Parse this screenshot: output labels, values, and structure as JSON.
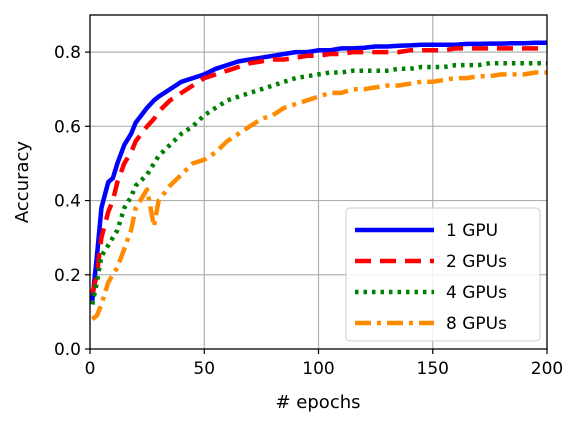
{
  "chart_data": {
    "type": "line",
    "title": "",
    "xlabel": "# epochs",
    "ylabel": "Accuracy",
    "xlim": [
      0,
      200
    ],
    "ylim": [
      0,
      0.9
    ],
    "xticks": [
      0,
      50,
      100,
      150,
      200
    ],
    "yticks": [
      0.0,
      0.2,
      0.4,
      0.6,
      0.8
    ],
    "xtick_labels": [
      "0",
      "50",
      "100",
      "150",
      "200"
    ],
    "ytick_labels": [
      "0.0",
      "0.2",
      "0.4",
      "0.6",
      "0.8"
    ],
    "grid": true,
    "legend_position": "lower-right",
    "x": [
      1,
      3,
      5,
      8,
      10,
      12,
      15,
      18,
      20,
      25,
      28,
      30,
      35,
      40,
      45,
      50,
      55,
      60,
      65,
      70,
      75,
      80,
      85,
      90,
      95,
      100,
      105,
      110,
      115,
      120,
      125,
      130,
      135,
      140,
      145,
      150,
      155,
      160,
      165,
      170,
      175,
      180,
      185,
      190,
      195,
      200
    ],
    "series": [
      {
        "name": "1 GPU",
        "color": "#0000ff",
        "style": "solid",
        "values": [
          0.13,
          0.25,
          0.38,
          0.45,
          0.46,
          0.5,
          0.55,
          0.58,
          0.61,
          0.65,
          0.67,
          0.68,
          0.7,
          0.72,
          0.73,
          0.74,
          0.755,
          0.765,
          0.775,
          0.78,
          0.785,
          0.79,
          0.795,
          0.8,
          0.8,
          0.805,
          0.805,
          0.81,
          0.81,
          0.812,
          0.815,
          0.815,
          0.817,
          0.818,
          0.82,
          0.82,
          0.82,
          0.82,
          0.822,
          0.822,
          0.823,
          0.823,
          0.824,
          0.824,
          0.825,
          0.825
        ]
      },
      {
        "name": "2 GPUs",
        "color": "#ff0000",
        "style": "dashed",
        "values": [
          0.15,
          0.2,
          0.3,
          0.37,
          0.4,
          0.45,
          0.5,
          0.53,
          0.56,
          0.6,
          0.62,
          0.64,
          0.67,
          0.69,
          0.71,
          0.73,
          0.74,
          0.75,
          0.76,
          0.77,
          0.775,
          0.78,
          0.78,
          0.785,
          0.79,
          0.79,
          0.795,
          0.795,
          0.8,
          0.8,
          0.8,
          0.8,
          0.8,
          0.805,
          0.805,
          0.805,
          0.805,
          0.81,
          0.81,
          0.81,
          0.81,
          0.81,
          0.81,
          0.81,
          0.81,
          0.81
        ]
      },
      {
        "name": "4 GPUs",
        "color": "#008000",
        "style": "dotted",
        "values": [
          0.12,
          0.18,
          0.25,
          0.28,
          0.3,
          0.32,
          0.38,
          0.41,
          0.44,
          0.47,
          0.5,
          0.52,
          0.55,
          0.58,
          0.6,
          0.63,
          0.65,
          0.67,
          0.68,
          0.69,
          0.7,
          0.71,
          0.72,
          0.73,
          0.735,
          0.74,
          0.745,
          0.745,
          0.75,
          0.75,
          0.75,
          0.75,
          0.755,
          0.755,
          0.76,
          0.76,
          0.76,
          0.765,
          0.765,
          0.765,
          0.77,
          0.77,
          0.77,
          0.77,
          0.77,
          0.77
        ]
      },
      {
        "name": "8 GPUs",
        "color": "#ff8c00",
        "style": "dashdot",
        "values": [
          0.08,
          0.09,
          0.12,
          0.18,
          0.2,
          0.22,
          0.27,
          0.32,
          0.38,
          0.43,
          0.33,
          0.4,
          0.44,
          0.47,
          0.5,
          0.51,
          0.53,
          0.56,
          0.58,
          0.6,
          0.62,
          0.63,
          0.65,
          0.66,
          0.67,
          0.68,
          0.69,
          0.69,
          0.7,
          0.7,
          0.705,
          0.71,
          0.71,
          0.715,
          0.72,
          0.72,
          0.725,
          0.73,
          0.73,
          0.735,
          0.735,
          0.74,
          0.74,
          0.74,
          0.745,
          0.745
        ]
      }
    ]
  }
}
